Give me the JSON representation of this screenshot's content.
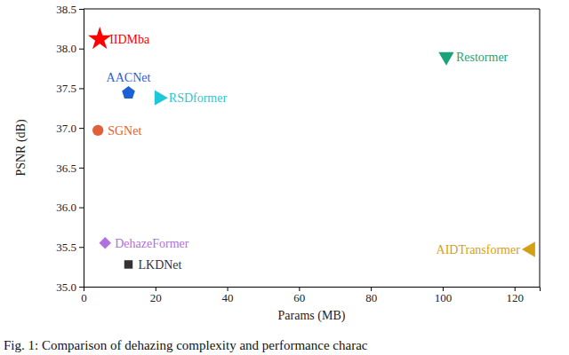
{
  "chart_data": {
    "type": "scatter",
    "x_label": "Params (MB)",
    "y_label": "PSNR (dB)",
    "caption": "Fig. 1: Comparison of dehazing complexity and performance charac",
    "xlim": [
      0,
      127
    ],
    "xticks": [
      0,
      20,
      40,
      60,
      80,
      100,
      120
    ],
    "ylim": [
      35,
      38.5
    ],
    "yticks": [
      {
        "value": 35,
        "label": "35.0"
      },
      35.5,
      {
        "value": 36,
        "label": "36.0"
      },
      36.5,
      {
        "value": 37,
        "label": "37.0"
      },
      37.5,
      {
        "value": 38,
        "label": "38.0"
      },
      38.5
    ],
    "grid": false,
    "series": [
      {
        "name": "IIDMba",
        "color": "#ff0000",
        "marker": "star",
        "x": [
          4.5
        ],
        "values": [
          38.12
        ]
      },
      {
        "name": "AACNet",
        "color": "#1f5fd6",
        "marker": "pentagon",
        "x": [
          12.5
        ],
        "values": [
          37.44
        ]
      },
      {
        "name": "RSDformer",
        "color": "#1fc8d8",
        "marker": "triangle-right",
        "x": [
          21
        ],
        "values": [
          37.38
        ]
      },
      {
        "name": "SGNet",
        "color": "#e0603c",
        "marker": "circle",
        "x": [
          4
        ],
        "values": [
          36.97
        ]
      },
      {
        "name": "DehazeFormer",
        "color": "#b070e0",
        "marker": "diamond",
        "x": [
          6
        ],
        "values": [
          35.55
        ]
      },
      {
        "name": "LKDNet",
        "color": "#333333",
        "marker": "square",
        "x": [
          12.5
        ],
        "values": [
          35.28
        ]
      },
      {
        "name": "Restormer",
        "color": "#1aa37a",
        "marker": "triangle-down",
        "x": [
          101
        ],
        "values": [
          37.9
        ]
      },
      {
        "name": "AIDTransformer",
        "color": "#d4a017",
        "marker": "triangle-left",
        "x": [
          124.5
        ],
        "values": [
          35.47
        ]
      }
    ]
  }
}
